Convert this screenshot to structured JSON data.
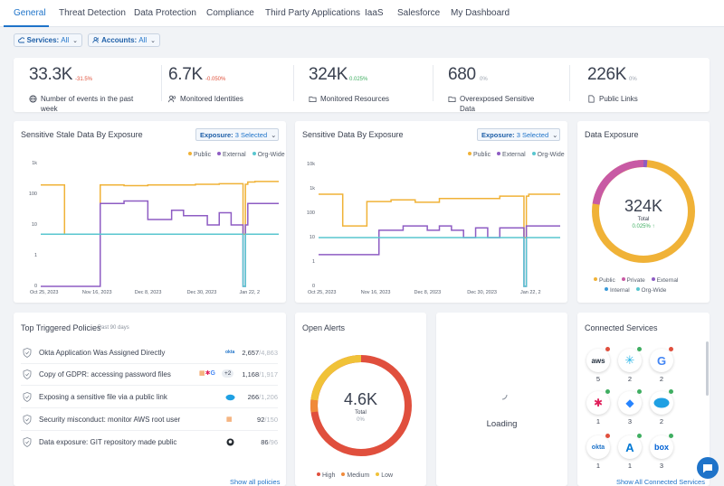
{
  "tabs": [
    "General",
    "Threat Detection",
    "Data Protection",
    "Compliance",
    "Third Party Applications",
    "IaaS",
    "Salesforce",
    "My Dashboard"
  ],
  "filters": {
    "services": {
      "label": "Services:",
      "value": "All"
    },
    "accounts": {
      "label": "Accounts:",
      "value": "All"
    }
  },
  "stats": [
    {
      "value": "33.3K",
      "change": "-31.5%",
      "label": "Number of events in the past week",
      "icon": "globe-icon",
      "trend": "down"
    },
    {
      "value": "6.7K",
      "change": "-0.050%",
      "label": "Monitored Identities",
      "icon": "users-icon",
      "trend": "down"
    },
    {
      "value": "324K",
      "change": "0.025%",
      "label": "Monitored Resources",
      "icon": "folder-icon",
      "trend": "up"
    },
    {
      "value": "680",
      "change": "0%",
      "label": "Overexposed Sensitive Data",
      "icon": "folder-icon",
      "trend": "flat"
    },
    {
      "value": "226K",
      "change": "0%",
      "label": "Public Links",
      "icon": "document-icon",
      "trend": "flat"
    }
  ],
  "colors": {
    "public": "#f0b237",
    "external": "#8e5cc3",
    "orgwide": "#59c6cf",
    "private": "#c85aa4",
    "internal": "#3a9ad9",
    "high": "#e04f3d",
    "medium": "#f08a3a",
    "low": "#f0c238",
    "accent": "#1e73c9"
  },
  "chart1": {
    "title": "Sensitive Stale Data By Exposure",
    "exposure_label": "Exposure:",
    "exposure_value": "3 Selected",
    "legend": [
      "Public",
      "External",
      "Org-Wide"
    ]
  },
  "chart2": {
    "title": "Sensitive Data By Exposure",
    "exposure_label": "Exposure:",
    "exposure_value": "3 Selected",
    "legend": [
      "Public",
      "External",
      "Org-Wide"
    ]
  },
  "chart_data": [
    {
      "type": "line",
      "title": "Sensitive Stale Data By Exposure",
      "yscale": "log",
      "yticks": [
        "0",
        "1",
        "10",
        "100",
        "1k"
      ],
      "xticks": [
        "Oct 25, 2023",
        "Nov 16, 2023",
        "Dec 8, 2023",
        "Dec 30, 2023",
        "Jan 22, 2"
      ],
      "x": [
        0,
        5,
        10,
        15,
        20,
        25,
        30,
        35,
        40,
        45,
        50,
        55,
        60,
        65,
        70,
        75,
        80,
        84,
        85,
        86,
        87,
        90,
        95,
        100
      ],
      "series": [
        {
          "name": "Public",
          "values": [
            200,
            200,
            5,
            5,
            5,
            200,
            200,
            190,
            190,
            200,
            200,
            200,
            200,
            210,
            210,
            220,
            220,
            220,
            5,
            210,
            250,
            260,
            260,
            260
          ]
        },
        {
          "name": "External",
          "values": [
            0,
            0,
            0,
            0,
            0,
            50,
            50,
            60,
            60,
            15,
            15,
            30,
            20,
            20,
            10,
            25,
            10,
            10,
            0,
            10,
            50,
            50,
            50,
            50
          ]
        },
        {
          "name": "Org-Wide",
          "values": [
            5,
            5,
            5,
            5,
            5,
            5,
            5,
            5,
            5,
            5,
            5,
            5,
            5,
            5,
            5,
            5,
            5,
            5,
            0,
            5,
            5,
            5,
            5,
            5
          ]
        }
      ]
    },
    {
      "type": "line",
      "title": "Sensitive Data By Exposure",
      "yscale": "log",
      "yticks": [
        "0",
        "1",
        "10",
        "100",
        "1k",
        "10k"
      ],
      "xticks": [
        "Oct 25, 2023",
        "Nov 16, 2023",
        "Dec 8, 2023",
        "Dec 30, 2023",
        "Jan 22, 2"
      ],
      "x": [
        0,
        5,
        10,
        12,
        15,
        20,
        25,
        30,
        35,
        40,
        45,
        50,
        55,
        60,
        65,
        70,
        75,
        80,
        84,
        85,
        86,
        87,
        90,
        95,
        100
      ],
      "series": [
        {
          "name": "Public",
          "values": [
            600,
            600,
            30,
            30,
            30,
            300,
            300,
            350,
            350,
            280,
            280,
            400,
            400,
            400,
            400,
            400,
            500,
            500,
            500,
            10,
            500,
            600,
            600,
            600,
            600
          ]
        },
        {
          "name": "External",
          "values": [
            2,
            2,
            2,
            2,
            2,
            2,
            20,
            20,
            30,
            30,
            20,
            30,
            20,
            10,
            25,
            10,
            25,
            25,
            25,
            0,
            30,
            30,
            30,
            30,
            30
          ]
        },
        {
          "name": "Org-Wide",
          "values": [
            10,
            10,
            10,
            10,
            10,
            10,
            10,
            10,
            10,
            10,
            10,
            10,
            10,
            10,
            10,
            10,
            10,
            10,
            10,
            0,
            10,
            10,
            10,
            10,
            10
          ]
        }
      ]
    }
  ],
  "exposure": {
    "title": "Data Exposure",
    "value": "324K",
    "label": "Total",
    "change": "0.025%",
    "legend": [
      "Public",
      "Private",
      "External",
      "Internal",
      "Org-Wide"
    ]
  },
  "policies": {
    "title": "Top Triggered Policies",
    "subtitle": "Past 90 days",
    "show_all": "Show all policies",
    "rows": [
      {
        "name": "Okta Application Was Assigned Directly",
        "count": "2,657",
        "total": "/4,863",
        "service": "okta"
      },
      {
        "name": "Copy of GDPR: accessing password files",
        "count": "1,168",
        "total": "/1,917",
        "service": "multi",
        "extra": "+2"
      },
      {
        "name": "Exposing a sensitive file via a public link",
        "count": "266",
        "total": "/1,206",
        "service": "salesforce"
      },
      {
        "name": "Security misconduct: monitor AWS root user",
        "count": "92",
        "total": "/150",
        "service": "aws"
      },
      {
        "name": "Data exposure: GIT repository made public",
        "count": "86",
        "total": "/96",
        "service": "github"
      }
    ]
  },
  "alerts": {
    "title": "Open Alerts",
    "value": "4.6K",
    "label": "Total",
    "change": "0%",
    "legend": [
      "High",
      "Medium",
      "Low"
    ]
  },
  "loading": {
    "label": "Loading"
  },
  "services": {
    "title": "Connected Services",
    "show_all": "Show All Connected Services",
    "items": [
      {
        "name": "aws",
        "count": "5",
        "badge": "red"
      },
      {
        "name": "snowflake",
        "count": "2",
        "badge": "green"
      },
      {
        "name": "google",
        "count": "2",
        "badge": "red"
      },
      {
        "name": "slack",
        "count": "1",
        "badge": "green"
      },
      {
        "name": "jira",
        "count": "3",
        "badge": "green"
      },
      {
        "name": "salesforce",
        "count": "2",
        "badge": "green"
      },
      {
        "name": "okta",
        "count": "1",
        "badge": "red"
      },
      {
        "name": "azure",
        "count": "1",
        "badge": "green"
      },
      {
        "name": "box",
        "count": "3",
        "badge": "green"
      }
    ]
  }
}
